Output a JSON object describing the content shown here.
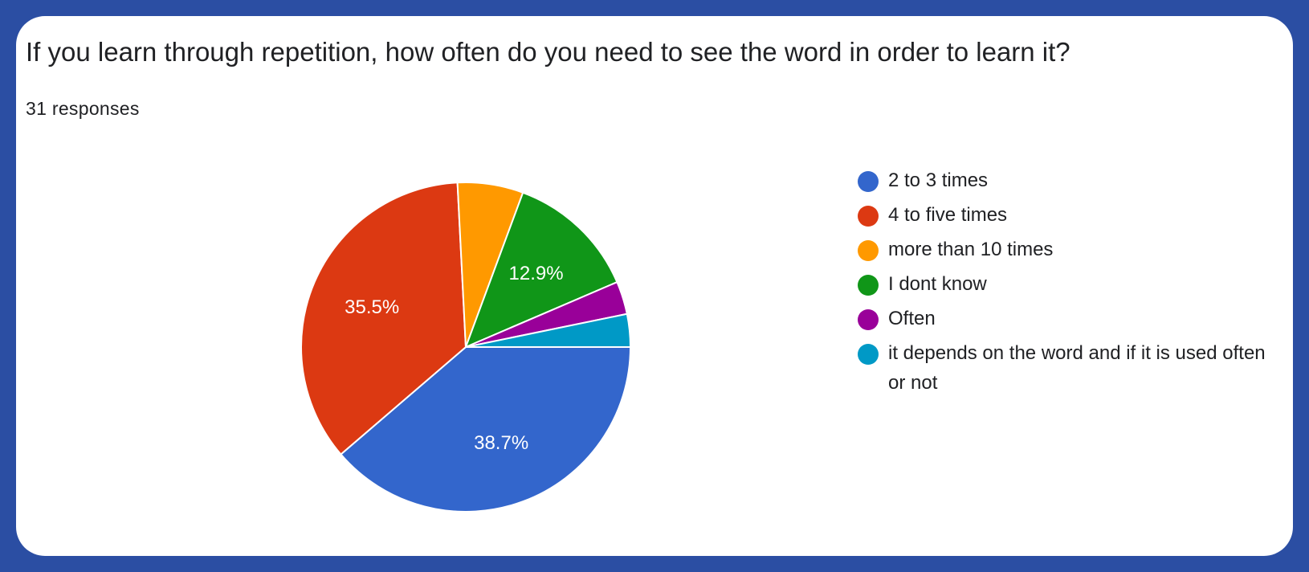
{
  "question": {
    "title": "If you learn through repetition, how often do you need to see the word in order to learn it?",
    "responses_label": "31 responses"
  },
  "chart_data": {
    "type": "pie",
    "total_responses": 31,
    "slices": [
      {
        "label": "2 to 3 times",
        "count": 12,
        "percent": 38.7,
        "percent_label": "38.7%",
        "color": "#3366cc"
      },
      {
        "label": "4 to five times",
        "count": 11,
        "percent": 35.5,
        "percent_label": "35.5%",
        "color": "#dc3912"
      },
      {
        "label": "more than 10 times",
        "count": 2,
        "percent": 6.5,
        "percent_label": "",
        "color": "#ff9900"
      },
      {
        "label": "I dont know",
        "count": 4,
        "percent": 12.9,
        "percent_label": "12.9%",
        "color": "#109618"
      },
      {
        "label": "Often",
        "count": 1,
        "percent": 3.2,
        "percent_label": "",
        "color": "#990099"
      },
      {
        "label": "it depends on the word and if it is used often or not",
        "count": 1,
        "percent": 3.2,
        "percent_label": "",
        "color": "#0099c6"
      }
    ],
    "legend_position": "right"
  }
}
